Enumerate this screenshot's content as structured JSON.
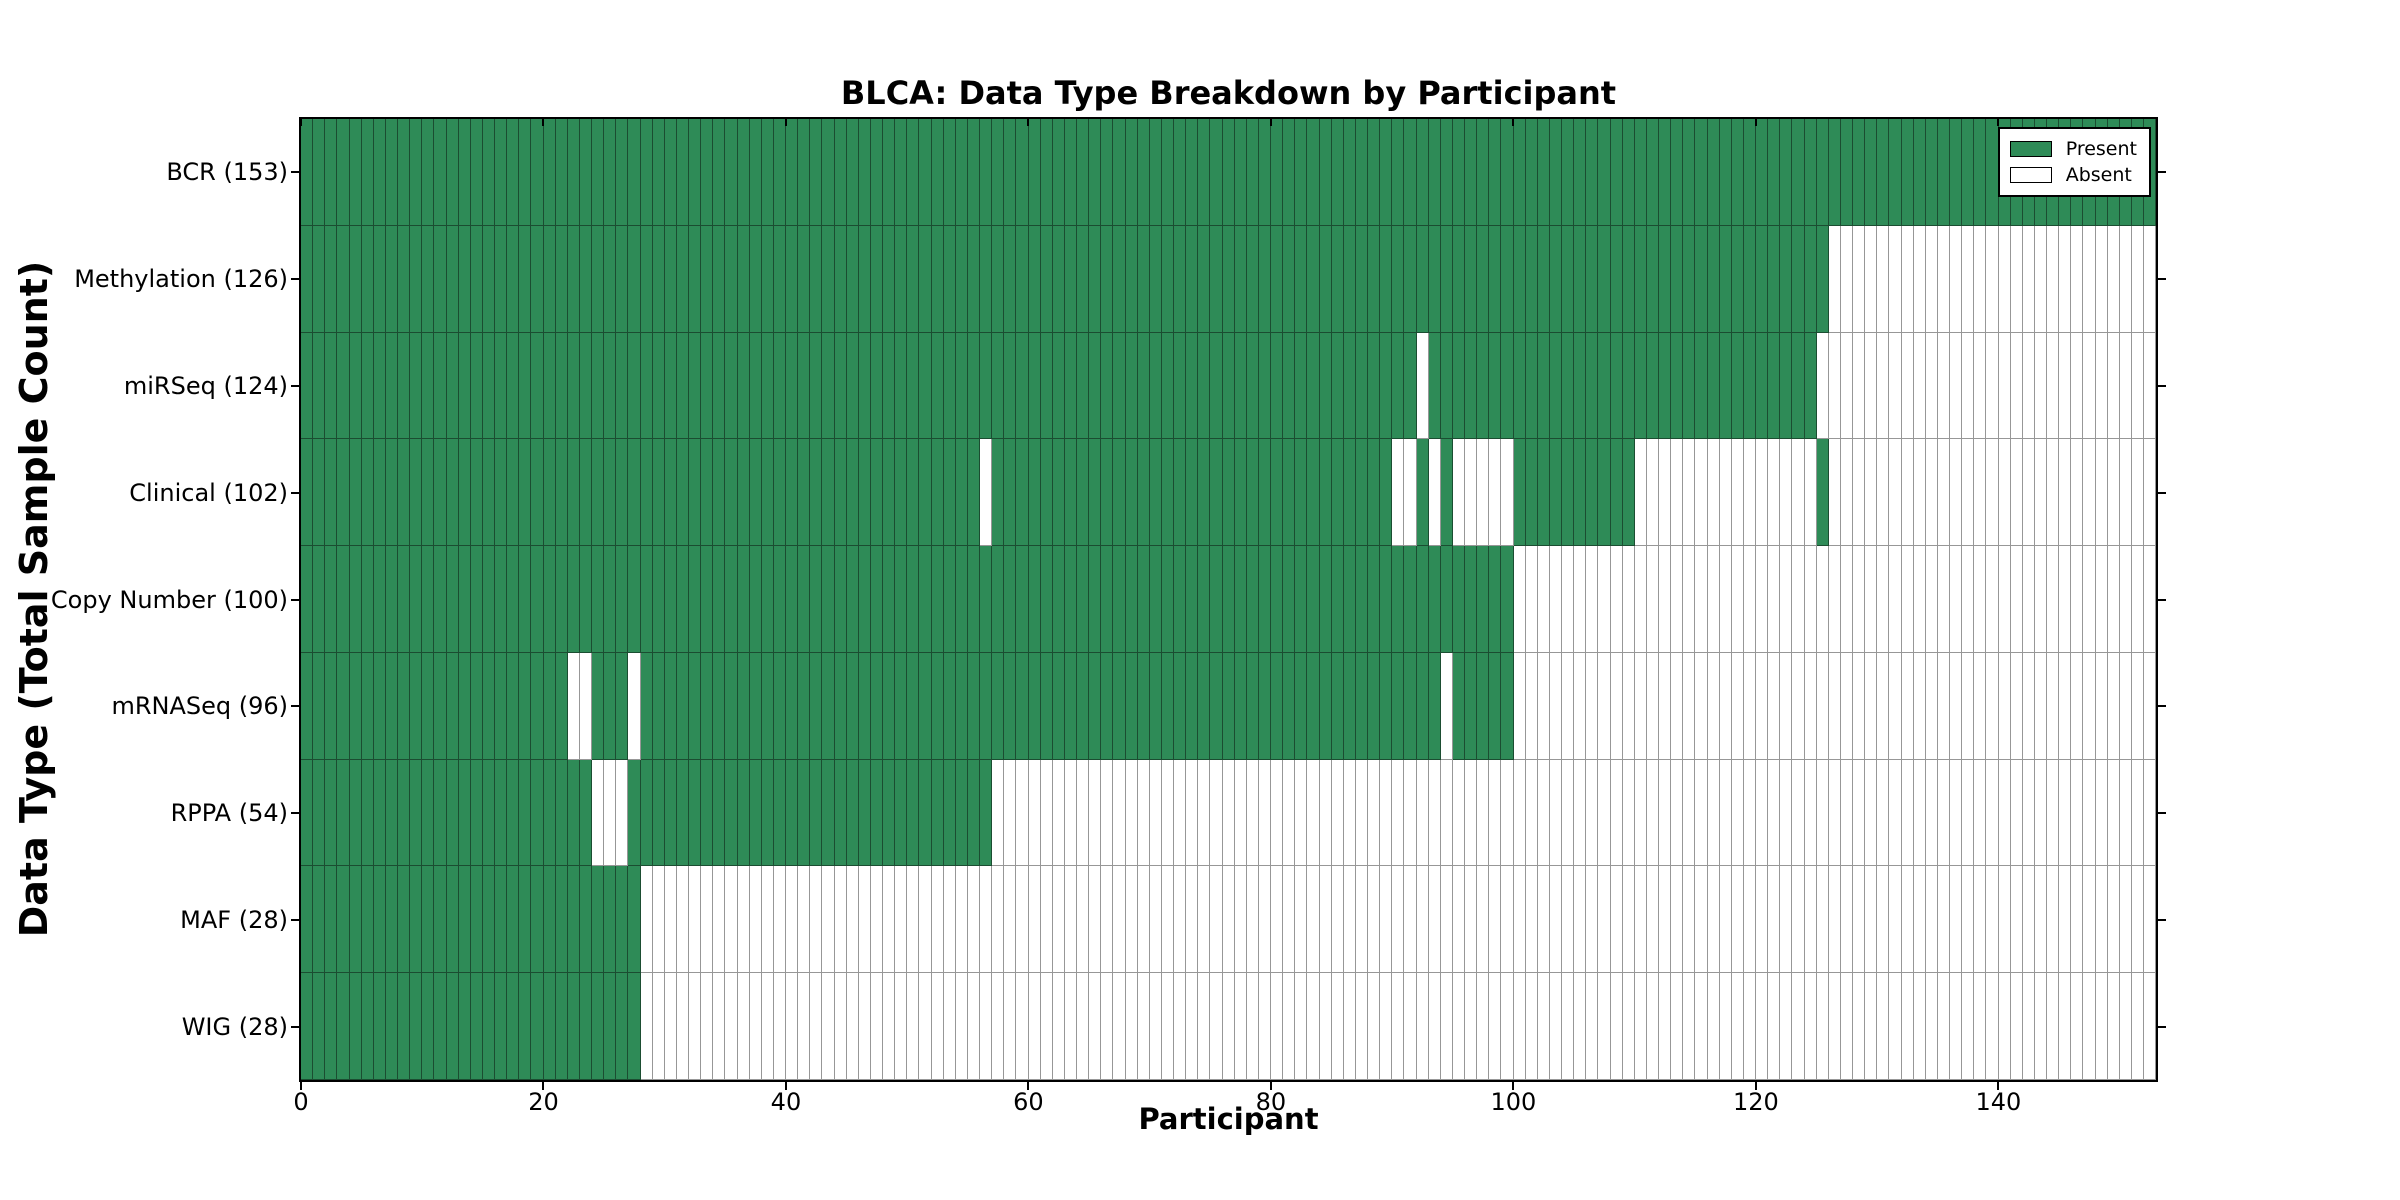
{
  "title": "BLCA: Data Type Breakdown by Participant",
  "legend": {
    "present_label": "Present",
    "absent_label": "Absent"
  },
  "colors": {
    "present": "#2e8b57",
    "absent": "#ffffff",
    "present_border": "#1b4d31",
    "absent_border": "#979797",
    "spine": "#000000"
  },
  "chart_data": {
    "type": "heatmap",
    "title": "BLCA: Data Type Breakdown by Participant",
    "xlabel": "Participant",
    "ylabel": "Data Type (Total Sample Count)",
    "legend_entries": [
      "Present",
      "Absent"
    ],
    "legend_position": "upper right",
    "grid": false,
    "n_participants": 153,
    "x_range": [
      0,
      153
    ],
    "x_ticks": [
      0,
      20,
      40,
      60,
      80,
      100,
      120,
      140
    ],
    "rows": [
      {
        "data_type": "BCR",
        "label": "BCR (153)",
        "total": 153,
        "present_ranges": [
          [
            0,
            152
          ]
        ]
      },
      {
        "data_type": "Methylation",
        "label": "Methylation (126)",
        "total": 126,
        "present_ranges": [
          [
            0,
            125
          ]
        ]
      },
      {
        "data_type": "miRSeq",
        "label": "miRSeq (124)",
        "total": 124,
        "present_ranges": [
          [
            0,
            91
          ],
          [
            93,
            124
          ]
        ]
      },
      {
        "data_type": "Clinical",
        "label": "Clinical (102)",
        "total": 102,
        "present_ranges": [
          [
            0,
            55
          ],
          [
            57,
            89
          ],
          [
            92,
            92
          ],
          [
            94,
            94
          ],
          [
            100,
            109
          ],
          [
            125,
            125
          ]
        ]
      },
      {
        "data_type": "Copy Number",
        "label": "Copy Number (100)",
        "total": 100,
        "present_ranges": [
          [
            0,
            99
          ]
        ]
      },
      {
        "data_type": "mRNASeq",
        "label": "mRNASeq (96)",
        "total": 96,
        "present_ranges": [
          [
            0,
            21
          ],
          [
            24,
            26
          ],
          [
            28,
            93
          ],
          [
            95,
            99
          ]
        ]
      },
      {
        "data_type": "RPPA",
        "label": "RPPA (54)",
        "total": 54,
        "present_ranges": [
          [
            0,
            23
          ],
          [
            27,
            56
          ]
        ]
      },
      {
        "data_type": "MAF",
        "label": "MAF (28)",
        "total": 28,
        "present_ranges": [
          [
            0,
            27
          ]
        ]
      },
      {
        "data_type": "WIG",
        "label": "WIG (28)",
        "total": 28,
        "present_ranges": [
          [
            0,
            27
          ]
        ]
      }
    ]
  }
}
